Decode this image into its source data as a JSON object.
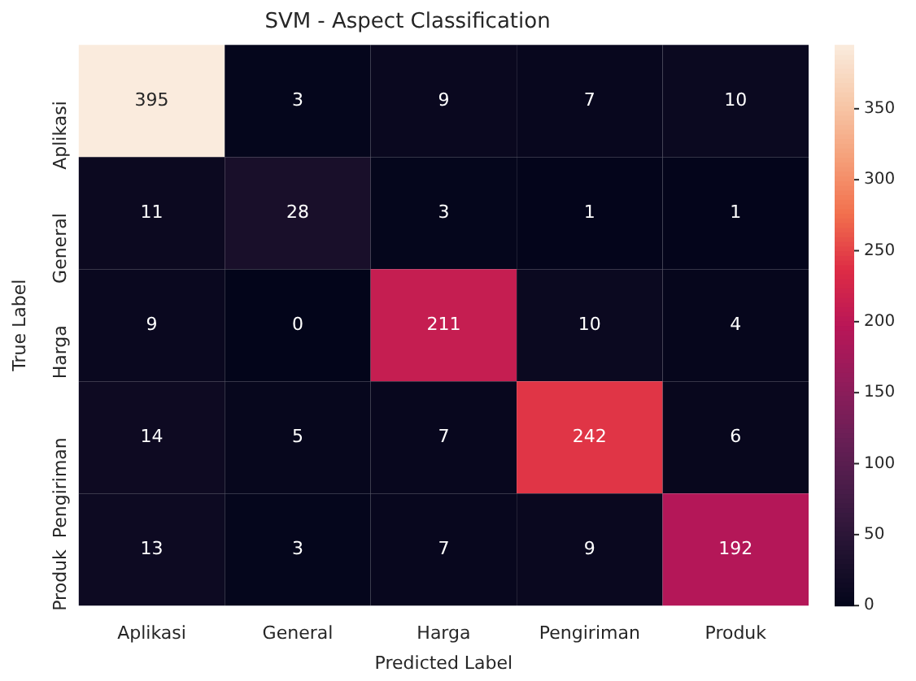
{
  "chart_data": {
    "type": "heatmap",
    "title": "SVM - Aspect Classification",
    "xlabel": "Predicted Label",
    "ylabel": "True Label",
    "categories": [
      "Aplikasi",
      "General",
      "Harga",
      "Pengiriman",
      "Produk"
    ],
    "y_categories": [
      "Aplikasi",
      "General",
      "Harga",
      "Pengiriman",
      "Produk"
    ],
    "cells": [
      [
        395,
        3,
        9,
        7,
        10
      ],
      [
        11,
        28,
        3,
        1,
        1
      ],
      [
        9,
        0,
        211,
        10,
        4
      ],
      [
        14,
        5,
        7,
        242,
        6
      ],
      [
        13,
        3,
        7,
        9,
        192
      ]
    ],
    "clim": [
      0,
      395
    ],
    "cticks": [
      0,
      50,
      100,
      150,
      200,
      250,
      300,
      350
    ],
    "data_labels": true
  }
}
